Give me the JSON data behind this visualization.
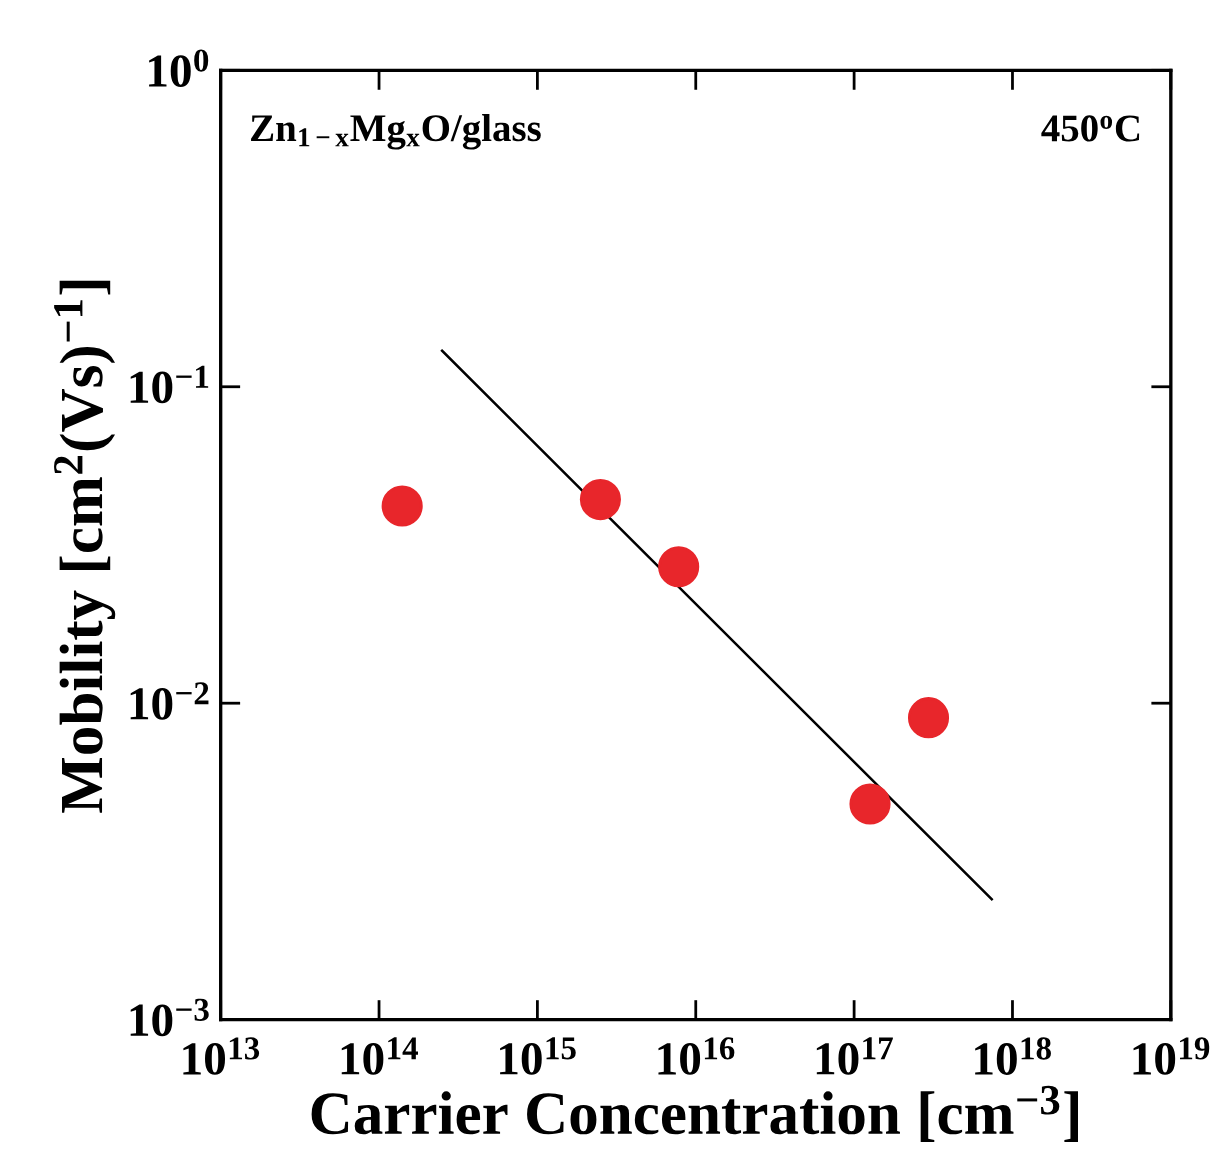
{
  "chart_data": {
    "type": "scatter",
    "xlabel": "Carrier Concentration [cm$^{−3}$]",
    "ylabel": "Mobility [cm$^{2}$(Vs)$^{−1}$]",
    "log": "xy",
    "xlim": [
      10000000000000.0,
      1e+19
    ],
    "ylim": [
      0.001,
      1
    ],
    "xticks": [
      {
        "value": 10000000000000.0,
        "label": "10$^{13}$"
      },
      {
        "value": 100000000000000.0,
        "label": "10$^{14}$"
      },
      {
        "value": 1000000000000000.0,
        "label": "10$^{15}$"
      },
      {
        "value": 1e+16,
        "label": "10$^{16}$"
      },
      {
        "value": 1e+17,
        "label": "10$^{17}$"
      },
      {
        "value": 1e+18,
        "label": "10$^{18}$"
      },
      {
        "value": 1e+19,
        "label": "10$^{19}$"
      }
    ],
    "yticks": [
      {
        "value": 0.001,
        "label": "10$^{−3}$"
      },
      {
        "value": 0.01,
        "label": "10$^{−2}$"
      },
      {
        "value": 0.1,
        "label": "10$^{−1}$"
      },
      {
        "value": 1,
        "label": "10$^{0}$"
      }
    ],
    "grid": false,
    "series": [
      {
        "marker": "circle",
        "color": "#e8262b",
        "x": [
          140000000000000.0,
          2500000000000000.0,
          7800000000000000.0,
          1.26e+17,
          2.95e+17
        ],
        "values": [
          0.042,
          0.044,
          0.027,
          0.0048,
          0.009
        ]
      },
      {
        "type": "line",
        "color": "#000000",
        "x": [
          250000000000000.0,
          7.4e+17
        ],
        "values": [
          0.13,
          0.0024
        ]
      }
    ],
    "annotations": [
      "Zn$_{1−x}$Mg$_{x}$O/glass",
      "450$^{o}$C"
    ]
  }
}
